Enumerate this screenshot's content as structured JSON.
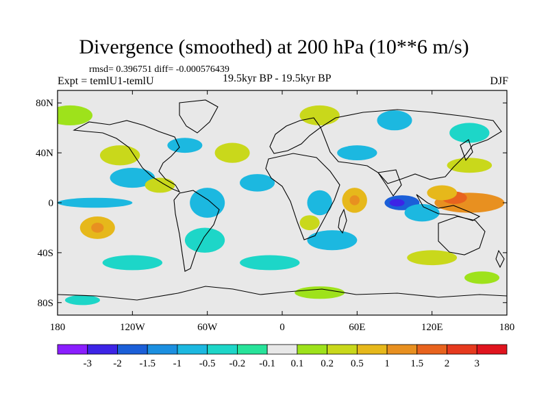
{
  "figure": {
    "title": "Divergence (smoothed) at 200 hPa (10**6 m/s)",
    "stats": "rmsd= 0.396751  diff= -0.000576439",
    "expt": "Expt = temlU1-temlU",
    "period": "19.5kyr BP - 19.5kyr BP",
    "season": "DJF"
  },
  "chart_data": {
    "type": "heatmap",
    "title": "Divergence (smoothed) at 200 hPa (10**6 m/s)",
    "variable": "Divergence difference (smoothed), 200 hPa",
    "units": "10**6 m/s",
    "xlim": [
      -180,
      180
    ],
    "ylim": [
      -90,
      90
    ],
    "x_ticks": [
      {
        "value": -180,
        "label": "180"
      },
      {
        "value": -120,
        "label": "120W"
      },
      {
        "value": -60,
        "label": "60W"
      },
      {
        "value": 0,
        "label": "0"
      },
      {
        "value": 60,
        "label": "60E"
      },
      {
        "value": 120,
        "label": "120E"
      },
      {
        "value": 180,
        "label": "180"
      }
    ],
    "y_ticks": [
      {
        "value": 80,
        "label": "80N"
      },
      {
        "value": 40,
        "label": "40N"
      },
      {
        "value": 0,
        "label": "0"
      },
      {
        "value": -40,
        "label": "40S"
      },
      {
        "value": -80,
        "label": "80S"
      }
    ],
    "colorbar": {
      "labels": [
        "-3",
        "-2",
        "-1.5",
        "-1",
        "-0.5",
        "-0.2",
        "-0.1",
        "0.1",
        "0.2",
        "0.5",
        "1",
        "1.5",
        "2",
        "3"
      ],
      "colors": [
        "#8a1eff",
        "#3d24e6",
        "#1b5fd8",
        "#1b8fe0",
        "#1cb8e0",
        "#1dd6c8",
        "#27e39a",
        "#e8e8e8",
        "#9ee21b",
        "#c9d81b",
        "#e6b81b",
        "#e89020",
        "#e8631e",
        "#e63a1e",
        "#e0141e"
      ]
    },
    "regions": [
      {
        "lon": 150,
        "lat": 0,
        "rx": 28,
        "ry": 8,
        "value": 1.5
      },
      {
        "lon": 138,
        "lat": 4,
        "rx": 10,
        "ry": 5,
        "value": 2
      },
      {
        "lon": 128,
        "lat": 8,
        "rx": 12,
        "ry": 6,
        "value": 1
      },
      {
        "lon": 96,
        "lat": 0,
        "rx": 14,
        "ry": 6,
        "value": -1.5
      },
      {
        "lon": 92,
        "lat": 0,
        "rx": 6,
        "ry": 3,
        "value": -2
      },
      {
        "lon": 112,
        "lat": -8,
        "rx": 14,
        "ry": 7,
        "value": -0.5
      },
      {
        "lon": 58,
        "lat": 2,
        "rx": 10,
        "ry": 10,
        "value": 1
      },
      {
        "lon": 58,
        "lat": 2,
        "rx": 4,
        "ry": 4,
        "value": 1.5
      },
      {
        "lon": 30,
        "lat": 0,
        "rx": 10,
        "ry": 10,
        "value": -0.5
      },
      {
        "lon": 40,
        "lat": -30,
        "rx": 20,
        "ry": 8,
        "value": -0.5
      },
      {
        "lon": 22,
        "lat": -16,
        "rx": 8,
        "ry": 6,
        "value": 0.5
      },
      {
        "lon": -148,
        "lat": -20,
        "rx": 14,
        "ry": 9,
        "value": 1
      },
      {
        "lon": -148,
        "lat": -20,
        "rx": 5,
        "ry": 4,
        "value": 1.5
      },
      {
        "lon": -150,
        "lat": 0,
        "rx": 30,
        "ry": 4,
        "value": -0.5
      },
      {
        "lon": -120,
        "lat": 20,
        "rx": 18,
        "ry": 8,
        "value": -0.5
      },
      {
        "lon": -130,
        "lat": 38,
        "rx": 16,
        "ry": 8,
        "value": 0.5
      },
      {
        "lon": -98,
        "lat": 14,
        "rx": 12,
        "ry": 6,
        "value": 0.5
      },
      {
        "lon": -78,
        "lat": 46,
        "rx": 14,
        "ry": 6,
        "value": -0.5
      },
      {
        "lon": -60,
        "lat": 0,
        "rx": 14,
        "ry": 12,
        "value": -0.5
      },
      {
        "lon": -62,
        "lat": -30,
        "rx": 16,
        "ry": 10,
        "value": -0.2
      },
      {
        "lon": -40,
        "lat": 40,
        "rx": 14,
        "ry": 8,
        "value": 0.5
      },
      {
        "lon": -20,
        "lat": 16,
        "rx": 14,
        "ry": 7,
        "value": -0.5
      },
      {
        "lon": 30,
        "lat": 70,
        "rx": 16,
        "ry": 8,
        "value": 0.5
      },
      {
        "lon": 90,
        "lat": 66,
        "rx": 14,
        "ry": 8,
        "value": -0.5
      },
      {
        "lon": -170,
        "lat": 70,
        "rx": 18,
        "ry": 8,
        "value": 0.2
      },
      {
        "lon": 150,
        "lat": 56,
        "rx": 16,
        "ry": 8,
        "value": -0.2
      },
      {
        "lon": 150,
        "lat": 30,
        "rx": 18,
        "ry": 6,
        "value": 0.5
      },
      {
        "lon": 60,
        "lat": 40,
        "rx": 16,
        "ry": 6,
        "value": -0.5
      },
      {
        "lon": -120,
        "lat": -48,
        "rx": 24,
        "ry": 6,
        "value": -0.2
      },
      {
        "lon": 120,
        "lat": -44,
        "rx": 20,
        "ry": 6,
        "value": 0.5
      },
      {
        "lon": -10,
        "lat": -48,
        "rx": 24,
        "ry": 6,
        "value": -0.2
      },
      {
        "lon": 30,
        "lat": -72,
        "rx": 20,
        "ry": 5,
        "value": 0.2
      },
      {
        "lon": -160,
        "lat": -78,
        "rx": 14,
        "ry": 4,
        "value": -0.2
      },
      {
        "lon": 160,
        "lat": -60,
        "rx": 14,
        "ry": 5,
        "value": 0.2
      }
    ]
  }
}
